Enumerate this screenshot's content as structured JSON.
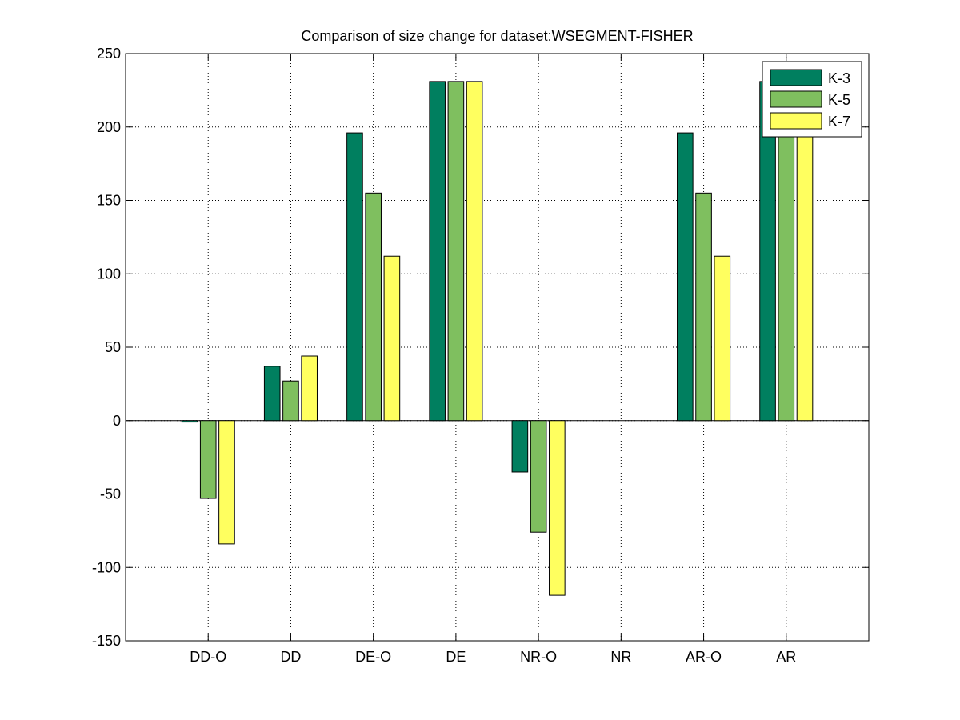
{
  "chart_data": {
    "type": "bar",
    "title": "Comparison of size change for dataset:WSEGMENT-FISHER",
    "xlabel": "",
    "ylabel": "",
    "categories": [
      "DD-O",
      "DD",
      "DE-O",
      "DE",
      "NR-O",
      "NR",
      "AR-O",
      "AR"
    ],
    "series": [
      {
        "name": "K-3",
        "color": "#007f5f",
        "values": [
          -1,
          37,
          196,
          231,
          -35,
          0,
          196,
          231
        ]
      },
      {
        "name": "K-5",
        "color": "#7fbf5f",
        "values": [
          -53,
          27,
          155,
          231,
          -76,
          0,
          155,
          231
        ]
      },
      {
        "name": "K-7",
        "color": "#ffff5f",
        "values": [
          -84,
          44,
          112,
          231,
          -119,
          0,
          112,
          231
        ]
      }
    ],
    "ylim": [
      -150,
      250
    ],
    "yticks": [
      -150,
      -100,
      -50,
      0,
      50,
      100,
      150,
      200,
      250
    ],
    "ytick_labels": [
      "-150",
      "-100",
      "-50",
      "0",
      "50",
      "100",
      "150",
      "200",
      "250"
    ],
    "grid": true,
    "legend_position": "top-right"
  }
}
